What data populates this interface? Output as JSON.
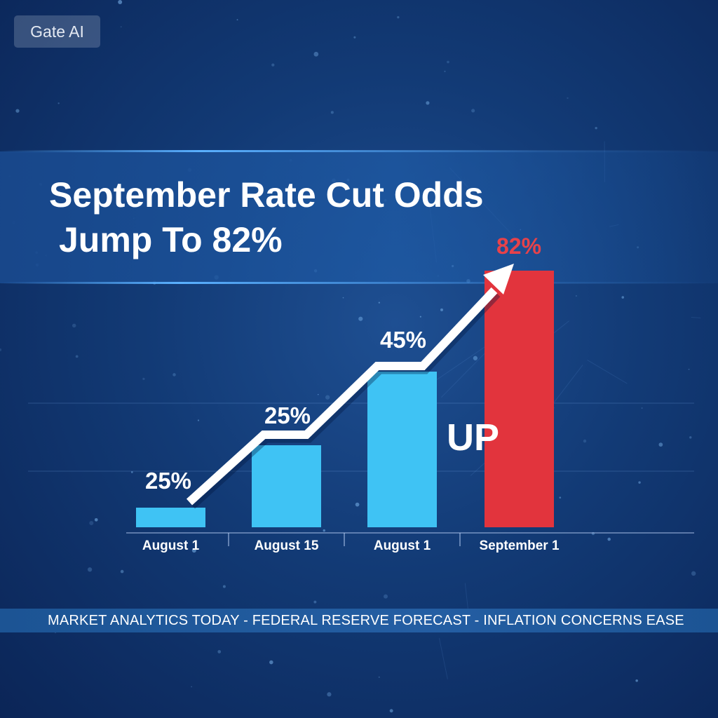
{
  "watermark": "Gate AI",
  "headline": {
    "line1": "September Rate Cut Odds",
    "line2": "Jump To 82%"
  },
  "ticker": "MARKET ANALYTICS TODAY - FEDERAL RESERVE FORECAST - INFLATION CONCERNS EASE",
  "colors": {
    "bar": "#3fc3f4",
    "highlight_bar": "#e2343d",
    "label": "#ffffff",
    "highlight_label": "#e7424a",
    "arrow": "#ffffff"
  },
  "chart_data": {
    "type": "bar",
    "categories": [
      "August 1",
      "August 15",
      "August 1",
      "September 1"
    ],
    "values": [
      25,
      25,
      45,
      82
    ],
    "data_labels": [
      "25%",
      "25%",
      "45%",
      "82%"
    ],
    "highlight_index": 3,
    "annotation": "UP",
    "trend_arrow": true,
    "grid": true,
    "xlabel": "",
    "ylabel": ""
  }
}
